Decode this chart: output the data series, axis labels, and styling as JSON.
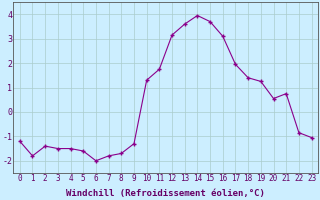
{
  "x": [
    0,
    1,
    2,
    3,
    4,
    5,
    6,
    7,
    8,
    9,
    10,
    11,
    12,
    13,
    14,
    15,
    16,
    17,
    18,
    19,
    20,
    21,
    22,
    23
  ],
  "y": [
    -1.2,
    -1.8,
    -1.4,
    -1.5,
    -1.5,
    -1.6,
    -2.0,
    -1.8,
    -1.7,
    -1.3,
    1.3,
    1.75,
    3.15,
    3.6,
    3.95,
    3.7,
    3.1,
    1.95,
    1.4,
    1.25,
    0.55,
    0.75,
    -0.85,
    -1.05
  ],
  "line_color": "#8b008b",
  "marker_color": "#8b008b",
  "bg_color": "#cceeff",
  "grid_color": "#aacccc",
  "xlabel": "Windchill (Refroidissement éolien,°C)",
  "xlim": [
    -0.5,
    23.5
  ],
  "ylim": [
    -2.5,
    4.5
  ],
  "yticks": [
    -2,
    -1,
    0,
    1,
    2,
    3,
    4
  ],
  "xticks": [
    0,
    1,
    2,
    3,
    4,
    5,
    6,
    7,
    8,
    9,
    10,
    11,
    12,
    13,
    14,
    15,
    16,
    17,
    18,
    19,
    20,
    21,
    22,
    23
  ],
  "xtick_labels": [
    "0",
    "1",
    "2",
    "3",
    "4",
    "5",
    "6",
    "7",
    "8",
    "9",
    "10",
    "11",
    "12",
    "13",
    "14",
    "15",
    "16",
    "17",
    "18",
    "19",
    "20",
    "21",
    "22",
    "23"
  ],
  "tick_fontsize": 5.5,
  "xlabel_fontsize": 6.5
}
